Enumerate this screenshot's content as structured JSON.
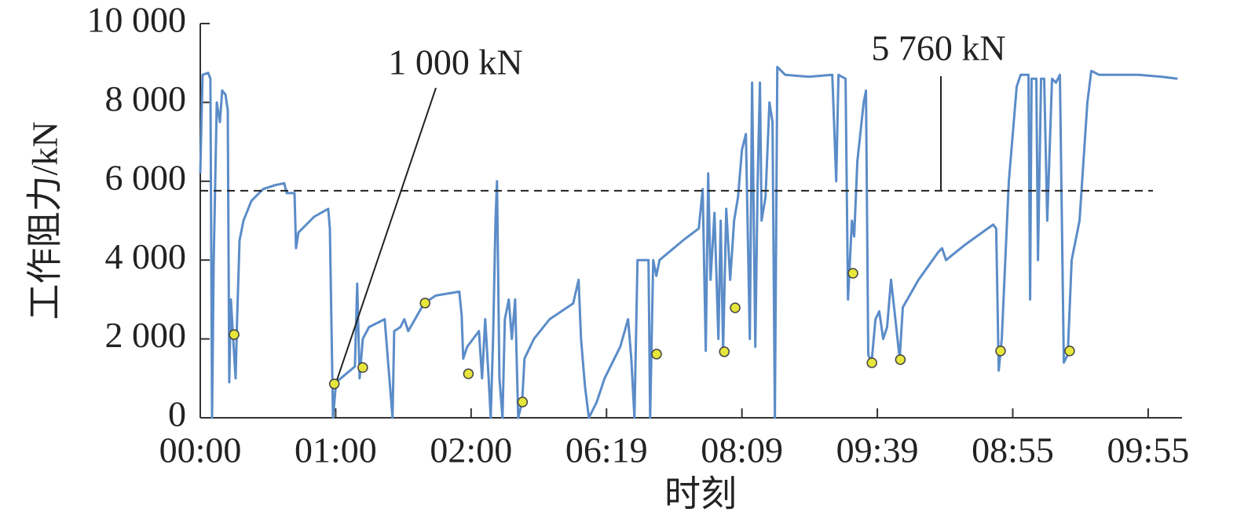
{
  "chart_data": {
    "type": "line",
    "x_label": "时刻",
    "y_label": "工作阻力/kN",
    "xlim": [
      0,
      7.25
    ],
    "xticks": [
      {
        "value": 0,
        "label": "00:00"
      },
      {
        "value": 1,
        "label": "01:00"
      },
      {
        "value": 2,
        "label": "02:00"
      },
      {
        "value": 3,
        "label": "06:19"
      },
      {
        "value": 4,
        "label": "08:09"
      },
      {
        "value": 5,
        "label": "09:39"
      },
      {
        "value": 6,
        "label": "08:55"
      },
      {
        "value": 7,
        "label": "09:55"
      }
    ],
    "ylim": [
      0,
      10000
    ],
    "yticks": [
      0,
      {
        "value": 2000,
        "label": "2 000"
      },
      {
        "value": 4000,
        "label": "4 000"
      },
      {
        "value": 6000,
        "label": "6 000"
      },
      {
        "value": 8000,
        "label": "8 000"
      },
      {
        "value": 10000,
        "label": "10 000"
      }
    ],
    "series": [
      {
        "color": "#5b8cc8",
        "x": [
          0,
          0.017,
          0.058,
          0.075,
          0.087,
          0.099,
          0.122,
          0.145,
          0.162,
          0.186,
          0.203,
          0.214,
          0.226,
          0.243,
          0.261,
          0.272,
          0.29,
          0.319,
          0.377,
          0.464,
          0.551,
          0.62,
          0.638,
          0.696,
          0.707,
          0.725,
          0.841,
          0.945,
          0.957,
          0.98,
          1.003,
          1.072,
          1.142,
          1.159,
          1.177,
          1.2,
          1.246,
          1.304,
          1.362,
          1.42,
          1.432,
          1.478,
          1.507,
          1.536,
          1.652,
          1.739,
          1.913,
          1.93,
          1.942,
          1.971,
          2.058,
          2.081,
          2.104,
          2.128,
          2.145,
          2.162,
          2.18,
          2.191,
          2.209,
          2.232,
          2.249,
          2.278,
          2.301,
          2.325,
          2.348,
          2.377,
          2.394,
          2.464,
          2.58,
          2.754,
          2.794,
          2.812,
          2.841,
          2.87,
          2.928,
          2.986,
          3.101,
          3.159,
          3.183,
          3.206,
          3.229,
          3.31,
          3.322,
          3.345,
          3.368,
          3.391,
          3.565,
          3.681,
          3.71,
          3.733,
          3.751,
          3.768,
          3.797,
          3.826,
          3.843,
          3.861,
          3.884,
          3.913,
          3.942,
          3.971,
          4.0,
          4.029,
          4.058,
          4.075,
          4.099,
          4.116,
          4.133,
          4.145,
          4.174,
          4.203,
          4.226,
          4.243,
          4.261,
          4.319,
          4.493,
          4.667,
          4.696,
          4.713,
          4.765,
          4.783,
          4.812,
          4.829,
          4.852,
          4.899,
          4.916,
          4.933,
          4.957,
          4.986,
          5.014,
          5.043,
          5.072,
          5.101,
          5.13,
          5.165,
          5.188,
          5.304,
          5.449,
          5.478,
          5.507,
          5.652,
          5.855,
          5.878,
          5.896,
          5.919,
          5.971,
          6.029,
          6.058,
          6.116,
          6.128,
          6.139,
          6.174,
          6.186,
          6.209,
          6.232,
          6.255,
          6.29,
          6.319,
          6.348,
          6.377,
          6.406,
          6.435,
          6.493,
          6.551,
          6.58,
          6.638,
          6.928,
          7.101,
          7.217
        ],
        "values": [
          6200,
          8700,
          8750,
          8600,
          0,
          4000,
          8000,
          7500,
          8300,
          8200,
          7800,
          900,
          3000,
          2000,
          1000,
          2500,
          4500,
          5000,
          5500,
          5800,
          5900,
          5950,
          5700,
          5700,
          4300,
          4700,
          5100,
          5300,
          4800,
          0,
          900,
          1100,
          1300,
          3400,
          1000,
          2000,
          2300,
          2400,
          2500,
          0,
          2200,
          2300,
          2500,
          2200,
          2900,
          3100,
          3200,
          2600,
          1500,
          1800,
          2200,
          1000,
          2500,
          1100,
          0,
          2000,
          5000,
          6000,
          1000,
          0,
          2500,
          3000,
          2000,
          3000,
          0,
          400,
          1500,
          2000,
          2500,
          2900,
          3500,
          2000,
          800,
          0,
          400,
          1000,
          1800,
          2500,
          1500,
          0,
          4000,
          4000,
          0,
          4000,
          3600,
          4000,
          4500,
          4800,
          5800,
          1700,
          6200,
          3500,
          5200,
          2000,
          5000,
          1700,
          5300,
          3500,
          5000,
          5600,
          6800,
          7200,
          2000,
          8500,
          1800,
          6000,
          8500,
          5000,
          5600,
          8000,
          7500,
          0,
          8900,
          8700,
          8650,
          8700,
          6000,
          8700,
          8600,
          3000,
          5000,
          4600,
          6500,
          8000,
          8300,
          1600,
          1400,
          2500,
          2700,
          2000,
          2300,
          3500,
          2600,
          1500,
          2800,
          3500,
          4200,
          4300,
          4000,
          4400,
          4900,
          4800,
          1200,
          2000,
          6000,
          8400,
          8700,
          8700,
          3000,
          8600,
          8600,
          4000,
          8600,
          8600,
          5000,
          8600,
          8500,
          8700,
          1400,
          1600,
          4000,
          5000,
          8000,
          8800,
          8700,
          8700,
          8650,
          8600
        ]
      }
    ],
    "points": {
      "color": "#e6e63c",
      "x": [
        0.25,
        0.99,
        1.2,
        1.66,
        1.98,
        2.38,
        3.37,
        3.87,
        3.95,
        4.82,
        4.96,
        5.17,
        5.91,
        6.42
      ],
      "values": [
        2110,
        860,
        1275,
        2910,
        1115,
        400,
        1615,
        1675,
        2790,
        3665,
        1395,
        1475,
        1695,
        1695
      ]
    },
    "reference_line": {
      "value": 5760,
      "label": "5 760 kN"
    },
    "annotations": [
      {
        "text": "1 000 kN"
      }
    ]
  }
}
